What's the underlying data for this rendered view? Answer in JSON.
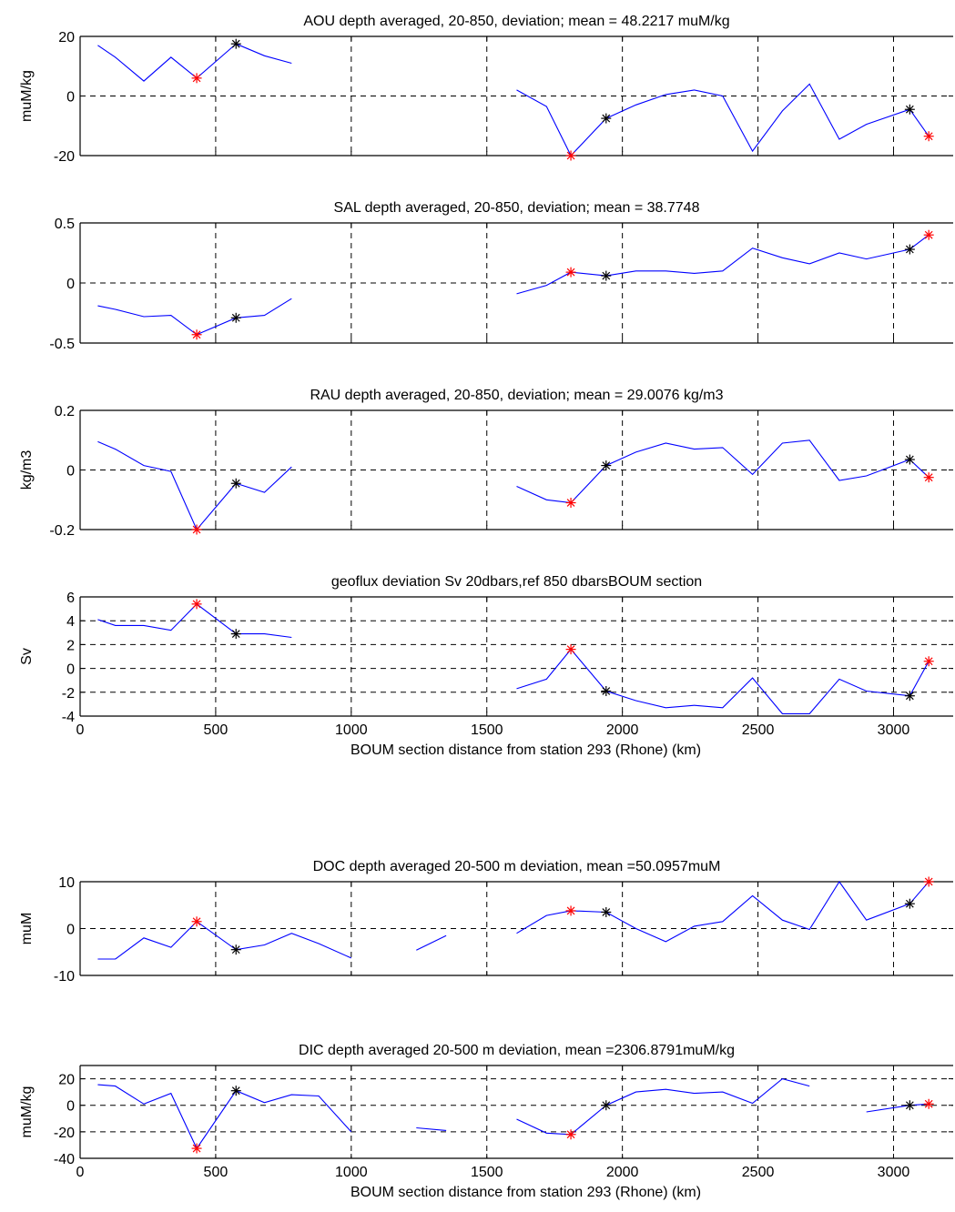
{
  "chart_data": [
    {
      "type": "line",
      "title": "AOU depth averaged, 20-850, deviation; mean = 48.2217 muM/kg",
      "ylabel": "muM/kg",
      "xlabel": "",
      "xlim": [
        0,
        3220
      ],
      "ylim": [
        -20,
        20
      ],
      "xticks": [
        0,
        500,
        1000,
        1500,
        2000,
        2500,
        3000
      ],
      "xtick_labels": [],
      "yticks": [
        -20,
        0,
        20
      ],
      "ytick_labels": [
        "-20",
        "0",
        "20"
      ],
      "grid": true,
      "segments": [
        [
          [
            65,
            17
          ],
          [
            130,
            13
          ],
          [
            235,
            5
          ],
          [
            335,
            13
          ],
          [
            430,
            6
          ],
          [
            575,
            17.5
          ],
          [
            680,
            13.5
          ],
          [
            780,
            11
          ]
        ],
        [
          [
            1610,
            2
          ],
          [
            1720,
            -3.5
          ],
          [
            1810,
            -20
          ],
          [
            1940,
            -7.5
          ],
          [
            2050,
            -3
          ],
          [
            2160,
            0.5
          ],
          [
            2265,
            2
          ],
          [
            2370,
            0
          ],
          [
            2480,
            -18.5
          ],
          [
            2590,
            -5
          ],
          [
            2690,
            4
          ],
          [
            2800,
            -14.5
          ],
          [
            2900,
            -9.5
          ],
          [
            3060,
            -4.5
          ],
          [
            3130,
            -13.5
          ]
        ]
      ],
      "markers": {
        "red": [
          [
            430,
            6
          ],
          [
            1810,
            -20
          ],
          [
            3130,
            -13.5
          ]
        ],
        "black": [
          [
            575,
            17.5
          ],
          [
            1940,
            -7.5
          ],
          [
            3060,
            -4.5
          ]
        ]
      }
    },
    {
      "type": "line",
      "title": "SAL depth averaged, 20-850, deviation; mean = 38.7748",
      "ylabel": "",
      "xlabel": "",
      "xlim": [
        0,
        3220
      ],
      "ylim": [
        -0.5,
        0.5
      ],
      "xticks": [
        0,
        500,
        1000,
        1500,
        2000,
        2500,
        3000
      ],
      "xtick_labels": [],
      "yticks": [
        -0.5,
        0,
        0.5
      ],
      "ytick_labels": [
        "-0.5",
        "0",
        "0.5"
      ],
      "grid": true,
      "segments": [
        [
          [
            65,
            -0.19
          ],
          [
            130,
            -0.22
          ],
          [
            235,
            -0.28
          ],
          [
            335,
            -0.27
          ],
          [
            430,
            -0.43
          ],
          [
            575,
            -0.29
          ],
          [
            680,
            -0.27
          ],
          [
            780,
            -0.13
          ]
        ],
        [
          [
            1610,
            -0.09
          ],
          [
            1720,
            -0.02
          ],
          [
            1810,
            0.09
          ],
          [
            1940,
            0.06
          ],
          [
            2050,
            0.1
          ],
          [
            2160,
            0.1
          ],
          [
            2265,
            0.08
          ],
          [
            2370,
            0.1
          ],
          [
            2480,
            0.29
          ],
          [
            2590,
            0.21
          ],
          [
            2690,
            0.16
          ],
          [
            2800,
            0.25
          ],
          [
            2900,
            0.2
          ],
          [
            3060,
            0.28
          ],
          [
            3130,
            0.4
          ]
        ]
      ],
      "markers": {
        "red": [
          [
            430,
            -0.43
          ],
          [
            1810,
            0.09
          ],
          [
            3130,
            0.4
          ]
        ],
        "black": [
          [
            575,
            -0.29
          ],
          [
            1940,
            0.06
          ],
          [
            3060,
            0.28
          ]
        ]
      }
    },
    {
      "type": "line",
      "title": "RAU depth averaged, 20-850, deviation; mean = 29.0076 kg/m3",
      "ylabel": "kg/m3",
      "xlabel": "",
      "xlim": [
        0,
        3220
      ],
      "ylim": [
        -0.2,
        0.2
      ],
      "xticks": [
        0,
        500,
        1000,
        1500,
        2000,
        2500,
        3000
      ],
      "xtick_labels": [],
      "yticks": [
        -0.2,
        0,
        0.2
      ],
      "ytick_labels": [
        "-0.2",
        "0",
        "0.2"
      ],
      "grid": true,
      "segments": [
        [
          [
            65,
            0.095
          ],
          [
            130,
            0.07
          ],
          [
            235,
            0.015
          ],
          [
            335,
            -0.005
          ],
          [
            430,
            -0.2
          ],
          [
            575,
            -0.045
          ],
          [
            680,
            -0.075
          ],
          [
            780,
            0.01
          ]
        ],
        [
          [
            1610,
            -0.055
          ],
          [
            1720,
            -0.1
          ],
          [
            1810,
            -0.11
          ],
          [
            1940,
            0.015
          ],
          [
            2050,
            0.06
          ],
          [
            2160,
            0.09
          ],
          [
            2265,
            0.07
          ],
          [
            2370,
            0.075
          ],
          [
            2480,
            -0.015
          ],
          [
            2590,
            0.09
          ],
          [
            2690,
            0.1
          ],
          [
            2800,
            -0.035
          ],
          [
            2900,
            -0.02
          ],
          [
            3060,
            0.035
          ],
          [
            3130,
            -0.025
          ]
        ]
      ],
      "markers": {
        "red": [
          [
            430,
            -0.2
          ],
          [
            1810,
            -0.11
          ],
          [
            3130,
            -0.025
          ]
        ],
        "black": [
          [
            575,
            -0.045
          ],
          [
            1940,
            0.015
          ],
          [
            3060,
            0.035
          ]
        ]
      }
    },
    {
      "type": "line",
      "title": "geoflux deviation Sv 20dbars,ref 850 dbarsBOUM section",
      "ylabel": "Sv",
      "xlabel": "BOUM section distance from station 293 (Rhone)  (km)",
      "xlim": [
        0,
        3220
      ],
      "ylim": [
        -4,
        6
      ],
      "xticks": [
        0,
        500,
        1000,
        1500,
        2000,
        2500,
        3000
      ],
      "xtick_labels": [
        "0",
        "500",
        "1000",
        "1500",
        "2000",
        "2500",
        "3000"
      ],
      "yticks": [
        -4,
        -2,
        0,
        2,
        4,
        6
      ],
      "ytick_labels": [
        "-4",
        "-2",
        "0",
        "2",
        "4",
        "6"
      ],
      "grid": true,
      "segments": [
        [
          [
            65,
            4.1
          ],
          [
            130,
            3.6
          ],
          [
            235,
            3.6
          ],
          [
            335,
            3.2
          ],
          [
            430,
            5.4
          ],
          [
            575,
            2.9
          ],
          [
            680,
            2.9
          ],
          [
            780,
            2.6
          ]
        ],
        [
          [
            1610,
            -1.7
          ],
          [
            1720,
            -0.9
          ],
          [
            1810,
            1.6
          ],
          [
            1940,
            -1.9
          ],
          [
            2050,
            -2.7
          ],
          [
            2160,
            -3.3
          ],
          [
            2265,
            -3.1
          ],
          [
            2370,
            -3.3
          ],
          [
            2480,
            -0.8
          ],
          [
            2590,
            -3.8
          ],
          [
            2690,
            -3.8
          ],
          [
            2800,
            -0.9
          ],
          [
            2900,
            -1.9
          ],
          [
            3060,
            -2.3
          ],
          [
            3130,
            0.6
          ]
        ]
      ],
      "markers": {
        "red": [
          [
            430,
            5.4
          ],
          [
            1810,
            1.6
          ],
          [
            3130,
            0.6
          ]
        ],
        "black": [
          [
            575,
            2.9
          ],
          [
            1940,
            -1.9
          ],
          [
            3060,
            -2.3
          ]
        ]
      }
    },
    {
      "type": "line",
      "title": "DOC depth averaged 20-500 m deviation, mean =50.0957muM",
      "ylabel": "muM",
      "xlabel": "",
      "xlim": [
        0,
        3220
      ],
      "ylim": [
        -10,
        10
      ],
      "xticks": [
        0,
        500,
        1000,
        1500,
        2000,
        2500,
        3000
      ],
      "xtick_labels": [],
      "yticks": [
        -10,
        0,
        10
      ],
      "ytick_labels": [
        "-10",
        "0",
        "10"
      ],
      "grid": true,
      "segments": [
        [
          [
            65,
            -6.5
          ],
          [
            130,
            -6.5
          ],
          [
            235,
            -2
          ],
          [
            335,
            -4
          ],
          [
            430,
            1.5
          ],
          [
            575,
            -4.5
          ],
          [
            680,
            -3.5
          ],
          [
            780,
            -1
          ],
          [
            880,
            -3.2
          ],
          [
            1000,
            -6.3
          ]
        ],
        [
          [
            1240,
            -4.6
          ],
          [
            1350,
            -1.5
          ]
        ],
        [
          [
            1610,
            -1
          ],
          [
            1720,
            2.8
          ],
          [
            1810,
            3.8
          ],
          [
            1940,
            3.5
          ],
          [
            2050,
            0
          ],
          [
            2160,
            -2.8
          ],
          [
            2265,
            0.5
          ],
          [
            2370,
            1.5
          ],
          [
            2480,
            7
          ],
          [
            2590,
            1.8
          ],
          [
            2690,
            -0.2
          ],
          [
            2800,
            10
          ],
          [
            2900,
            1.8
          ],
          [
            3060,
            5.3
          ],
          [
            3130,
            10
          ]
        ]
      ],
      "markers": {
        "red": [
          [
            430,
            1.5
          ],
          [
            1810,
            3.8
          ],
          [
            3130,
            10
          ]
        ],
        "black": [
          [
            575,
            -4.5
          ],
          [
            1940,
            3.5
          ],
          [
            3060,
            5.3
          ]
        ]
      }
    },
    {
      "type": "line",
      "title": "DIC depth averaged 20-500 m deviation, mean =2306.8791muM/kg",
      "ylabel": "muM/kg",
      "xlabel": "BOUM section distance from station 293 (Rhone)  (km)",
      "xlim": [
        0,
        3220
      ],
      "ylim": [
        -40,
        30
      ],
      "xticks": [
        0,
        500,
        1000,
        1500,
        2000,
        2500,
        3000
      ],
      "xtick_labels": [
        "0",
        "500",
        "1000",
        "1500",
        "2000",
        "2500",
        "3000"
      ],
      "yticks": [
        -40,
        -20,
        0,
        20
      ],
      "ytick_labels": [
        "-40",
        "-20",
        "0",
        "20"
      ],
      "grid": true,
      "segments": [
        [
          [
            65,
            15.5
          ],
          [
            130,
            14.5
          ],
          [
            235,
            1
          ],
          [
            335,
            9
          ],
          [
            430,
            -32.5
          ],
          [
            575,
            11
          ],
          [
            680,
            2
          ],
          [
            780,
            8
          ],
          [
            880,
            7
          ],
          [
            1000,
            -20
          ]
        ],
        [
          [
            1240,
            -17
          ],
          [
            1350,
            -19
          ]
        ],
        [
          [
            1610,
            -10.5
          ],
          [
            1720,
            -21
          ],
          [
            1810,
            -22
          ],
          [
            1940,
            0
          ],
          [
            2050,
            10
          ],
          [
            2160,
            12
          ],
          [
            2265,
            9
          ],
          [
            2370,
            10
          ],
          [
            2480,
            1.5
          ],
          [
            2590,
            20
          ],
          [
            2690,
            14.5
          ]
        ],
        [
          [
            2900,
            -5
          ],
          [
            3060,
            0
          ],
          [
            3130,
            1
          ]
        ]
      ],
      "markers": {
        "red": [
          [
            430,
            -32.5
          ],
          [
            1810,
            -22
          ],
          [
            3130,
            1
          ]
        ],
        "black": [
          [
            575,
            11
          ],
          [
            1940,
            0
          ],
          [
            3060,
            0
          ]
        ]
      }
    }
  ],
  "colors": {
    "line": "#0000ff",
    "marker_red": "#ff0000",
    "marker_black": "#000000",
    "axis": "#000000",
    "grid": "#000000"
  }
}
